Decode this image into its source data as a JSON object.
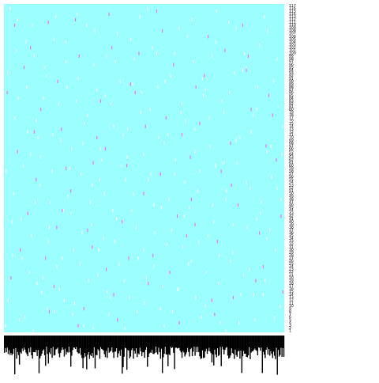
{
  "chart_data": {
    "type": "heatmap",
    "title": "",
    "xlabel": "",
    "ylabel": "",
    "grid": false,
    "legend": "none",
    "n_columns": 300,
    "n_rows": 117,
    "y_tick_labels": [
      "1",
      "2",
      "3",
      "4",
      "5",
      "6",
      "7",
      "8",
      "9",
      "10",
      "11",
      "12",
      "13",
      "14",
      "15",
      "16",
      "17",
      "18",
      "19",
      "20",
      "21",
      "22",
      "23",
      "24",
      "25",
      "26",
      "27",
      "28",
      "29",
      "30",
      "31",
      "32",
      "33",
      "34",
      "35",
      "36",
      "37",
      "38",
      "39",
      "40",
      "41",
      "42",
      "43",
      "44",
      "45",
      "46",
      "47",
      "48",
      "49",
      "50",
      "51",
      "52",
      "53",
      "54",
      "55",
      "56",
      "57",
      "58",
      "59",
      "60",
      "61",
      "62",
      "63",
      "64",
      "65",
      "66",
      "67",
      "68",
      "69",
      "70",
      "71",
      "72",
      "73",
      "74",
      "75",
      "76",
      "77",
      "78",
      "79",
      "80",
      "81",
      "82",
      "83",
      "84",
      "85",
      "86",
      "87",
      "88",
      "89",
      "90",
      "91",
      "92",
      "93",
      "94",
      "95",
      "96",
      "97",
      "98",
      "99",
      "100",
      "101",
      "102",
      "103",
      "104",
      "105",
      "106",
      "107",
      "108",
      "109",
      "110",
      "111",
      "112",
      "113",
      "114",
      "115",
      "116",
      "117"
    ],
    "colors": {
      "background": "#9bffff",
      "light_mark": "#ffffff",
      "dark_mark": "#ff66ff",
      "tick_label": "#000000"
    },
    "cells": {
      "white": [
        [
          2,
          3
        ],
        [
          5,
          12
        ],
        [
          9,
          40
        ],
        [
          12,
          77
        ],
        [
          14,
          101
        ],
        [
          17,
          5
        ],
        [
          21,
          60
        ],
        [
          25,
          88
        ],
        [
          28,
          22
        ],
        [
          31,
          110
        ],
        [
          34,
          47
        ],
        [
          37,
          70
        ],
        [
          41,
          15
        ],
        [
          44,
          95
        ],
        [
          48,
          33
        ],
        [
          52,
          58
        ],
        [
          55,
          8
        ],
        [
          59,
          82
        ],
        [
          63,
          27
        ],
        [
          66,
          104
        ],
        [
          69,
          49
        ],
        [
          73,
          66
        ],
        [
          76,
          11
        ],
        [
          80,
          91
        ],
        [
          84,
          36
        ],
        [
          87,
          75
        ],
        [
          91,
          19
        ],
        [
          95,
          53
        ],
        [
          98,
          108
        ],
        [
          102,
          30
        ],
        [
          105,
          62
        ],
        [
          109,
          85
        ],
        [
          113,
          7
        ],
        [
          117,
          44
        ],
        [
          120,
          97
        ],
        [
          124,
          25
        ],
        [
          128,
          71
        ],
        [
          131,
          55
        ],
        [
          135,
          13
        ],
        [
          138,
          89
        ],
        [
          142,
          38
        ],
        [
          146,
          113
        ],
        [
          150,
          64
        ],
        [
          153,
          20
        ],
        [
          157,
          80
        ],
        [
          161,
          46
        ],
        [
          164,
          100
        ],
        [
          168,
          9
        ],
        [
          172,
          68
        ],
        [
          175,
          32
        ],
        [
          179,
          92
        ],
        [
          183,
          57
        ],
        [
          186,
          16
        ],
        [
          190,
          79
        ],
        [
          194,
          42
        ],
        [
          197,
          106
        ],
        [
          201,
          26
        ],
        [
          205,
          73
        ],
        [
          208,
          51
        ],
        [
          212,
          6
        ],
        [
          216,
          87
        ],
        [
          219,
          35
        ],
        [
          223,
          99
        ],
        [
          227,
          60
        ],
        [
          230,
          18
        ],
        [
          234,
          83
        ],
        [
          238,
          48
        ],
        [
          241,
          111
        ],
        [
          245,
          29
        ],
        [
          249,
          69
        ],
        [
          252,
          4
        ],
        [
          256,
          94
        ],
        [
          260,
          54
        ],
        [
          263,
          23
        ],
        [
          267,
          78
        ],
        [
          271,
          41
        ],
        [
          274,
          103
        ],
        [
          278,
          14
        ],
        [
          282,
          65
        ],
        [
          285,
          37
        ],
        [
          289,
          90
        ],
        [
          293,
          52
        ],
        [
          296,
          10
        ],
        [
          299,
          74
        ],
        [
          3,
          58
        ],
        [
          6,
          93
        ],
        [
          10,
          28
        ],
        [
          15,
          112
        ],
        [
          19,
          41
        ],
        [
          23,
          6
        ],
        [
          26,
          72
        ],
        [
          30,
          35
        ],
        [
          33,
          99
        ],
        [
          36,
          18
        ],
        [
          40,
          63
        ],
        [
          43,
          84
        ],
        [
          47,
          9
        ],
        [
          50,
          47
        ],
        [
          54,
          105
        ],
        [
          57,
          24
        ],
        [
          61,
          69
        ],
        [
          65,
          12
        ],
        [
          68,
          88
        ],
        [
          72,
          43
        ],
        [
          75,
          30
        ],
        [
          79,
          114
        ],
        [
          83,
          57
        ],
        [
          86,
          3
        ],
        [
          90,
          78
        ],
        [
          94,
          39
        ],
        [
          97,
          96
        ],
        [
          101,
          21
        ],
        [
          104,
          66
        ],
        [
          108,
          50
        ],
        [
          111,
          15
        ],
        [
          115,
          82
        ],
        [
          119,
          33
        ],
        [
          122,
          107
        ],
        [
          126,
          60
        ],
        [
          130,
          2
        ],
        [
          133,
          73
        ],
        [
          137,
          44
        ],
        [
          140,
          98
        ],
        [
          144,
          27
        ],
        [
          148,
          86
        ],
        [
          151,
          11
        ],
        [
          155,
          55
        ],
        [
          159,
          102
        ],
        [
          162,
          36
        ],
        [
          166,
          70
        ],
        [
          170,
          17
        ],
        [
          173,
          90
        ],
        [
          177,
          48
        ],
        [
          181,
          8
        ],
        [
          184,
          62
        ],
        [
          188,
          109
        ],
        [
          192,
          31
        ],
        [
          195,
          76
        ],
        [
          199,
          45
        ],
        [
          203,
          97
        ],
        [
          206,
          13
        ],
        [
          210,
          58
        ],
        [
          214,
          85
        ],
        [
          217,
          22
        ],
        [
          221,
          67
        ],
        [
          225,
          40
        ],
        [
          228,
          115
        ],
        [
          232,
          4
        ],
        [
          236,
          79
        ],
        [
          239,
          51
        ],
        [
          243,
          26
        ],
        [
          247,
          93
        ],
        [
          250,
          61
        ],
        [
          254,
          14
        ],
        [
          258,
          100
        ],
        [
          261,
          38
        ],
        [
          265,
          72
        ],
        [
          269,
          5
        ],
        [
          272,
          88
        ],
        [
          276,
          47
        ],
        [
          280,
          19
        ],
        [
          283,
          108
        ],
        [
          287,
          56
        ],
        [
          291,
          30
        ],
        [
          294,
          81
        ],
        [
          298,
          64
        ],
        [
          7,
          116
        ],
        [
          11,
          50
        ],
        [
          16,
          84
        ],
        [
          20,
          27
        ],
        [
          24,
          104
        ],
        [
          29,
          64
        ],
        [
          32,
          1
        ],
        [
          35,
          76
        ],
        [
          39,
          53
        ],
        [
          42,
          20
        ],
        [
          46,
          92
        ],
        [
          49,
          38
        ],
        [
          53,
          71
        ],
        [
          56,
          113
        ],
        [
          60,
          16
        ],
        [
          64,
          44
        ],
        [
          67,
          97
        ],
        [
          71,
          59
        ],
        [
          74,
          7
        ],
        [
          78,
          83
        ],
        [
          82,
          25
        ],
        [
          85,
          68
        ],
        [
          89,
          110
        ],
        [
          93,
          47
        ],
        [
          96,
          2
        ],
        [
          100,
          87
        ],
        [
          103,
          55
        ],
        [
          107,
          34
        ],
        [
          110,
          99
        ],
        [
          114,
          13
        ],
        [
          118,
          74
        ],
        [
          121,
          41
        ],
        [
          125,
          90
        ],
        [
          129,
          19
        ],
        [
          132,
          63
        ],
        [
          136,
          105
        ],
        [
          139,
          50
        ],
        [
          143,
          8
        ],
        [
          147,
          79
        ],
        [
          150,
          30
        ],
        [
          154,
          116
        ],
        [
          158,
          57
        ],
        [
          161,
          24
        ],
        [
          165,
          88
        ],
        [
          169,
          45
        ],
        [
          172,
          3
        ],
        [
          176,
          71
        ],
        [
          180,
          37
        ],
        [
          183,
          100
        ],
        [
          187,
          16
        ],
        [
          191,
          82
        ],
        [
          194,
          54
        ],
        [
          198,
          25
        ],
        [
          202,
          112
        ],
        [
          205,
          65
        ],
        [
          209,
          33
        ],
        [
          213,
          91
        ],
        [
          216,
          10
        ],
        [
          220,
          77
        ],
        [
          224,
          46
        ],
        [
          227,
          104
        ],
        [
          231,
          28
        ],
        [
          235,
          61
        ],
        [
          238,
          1
        ],
        [
          242,
          86
        ],
        [
          246,
          39
        ],
        [
          249,
          109
        ],
        [
          253,
          70
        ],
        [
          257,
          21
        ],
        [
          260,
          95
        ],
        [
          264,
          52
        ],
        [
          268,
          14
        ],
        [
          271,
          80
        ],
        [
          275,
          43
        ],
        [
          279,
          113
        ],
        [
          282,
          34
        ],
        [
          286,
          67
        ],
        [
          290,
          6
        ],
        [
          293,
          98
        ],
        [
          297,
          48
        ]
      ],
      "magenta": [
        [
          8,
          20
        ],
        [
          22,
          95
        ],
        [
          35,
          55
        ],
        [
          49,
          8
        ],
        [
          62,
          73
        ],
        [
          77,
          112
        ],
        [
          90,
          37
        ],
        [
          104,
          83
        ],
        [
          118,
          14
        ],
        [
          132,
          60
        ],
        [
          145,
          100
        ],
        [
          160,
          28
        ],
        [
          174,
          77
        ],
        [
          188,
          4
        ],
        [
          201,
          48
        ],
        [
          215,
          92
        ],
        [
          229,
          33
        ],
        [
          243,
          68
        ],
        [
          256,
          110
        ],
        [
          270,
          19
        ],
        [
          284,
          85
        ],
        [
          297,
          42
        ],
        [
          15,
          65
        ],
        [
          29,
          102
        ],
        [
          45,
          27
        ],
        [
          58,
          90
        ],
        [
          72,
          51
        ],
        [
          86,
          9
        ],
        [
          100,
          70
        ],
        [
          113,
          114
        ],
        [
          127,
          40
        ],
        [
          141,
          86
        ],
        [
          155,
          18
        ],
        [
          168,
          57
        ],
        [
          182,
          96
        ],
        [
          196,
          35
        ],
        [
          210,
          75
        ],
        [
          223,
          12
        ],
        [
          237,
          101
        ],
        [
          251,
          46
        ],
        [
          265,
          80
        ],
        [
          278,
          24
        ],
        [
          292,
          62
        ],
        [
          12,
          110
        ],
        [
          26,
          43
        ],
        [
          40,
          80
        ],
        [
          54,
          17
        ],
        [
          67,
          59
        ],
        [
          81,
          99
        ],
        [
          95,
          31
        ],
        [
          109,
          66
        ],
        [
          122,
          5
        ],
        [
          136,
          89
        ],
        [
          150,
          50
        ],
        [
          164,
          115
        ],
        [
          178,
          22
        ],
        [
          191,
          71
        ],
        [
          205,
          39
        ],
        [
          219,
          106
        ],
        [
          233,
          58
        ],
        [
          246,
          13
        ],
        [
          260,
          94
        ],
        [
          274,
          36
        ],
        [
          288,
          78
        ],
        [
          4,
          86
        ],
        [
          18,
          30
        ],
        [
          33,
          72
        ],
        [
          48,
          111
        ],
        [
          63,
          44
        ],
        [
          80,
          3
        ],
        [
          96,
          61
        ],
        [
          116,
          102
        ],
        [
          134,
          27
        ],
        [
          152,
          74
        ],
        [
          170,
          108
        ],
        [
          186,
          42
        ],
        [
          206,
          88
        ],
        [
          226,
          7
        ],
        [
          244,
          53
        ],
        [
          262,
          99
        ],
        [
          281,
          67
        ],
        [
          299,
          15
        ],
        [
          110,
          23
        ],
        [
          57,
          38
        ],
        [
          200,
          63
        ]
      ]
    }
  }
}
